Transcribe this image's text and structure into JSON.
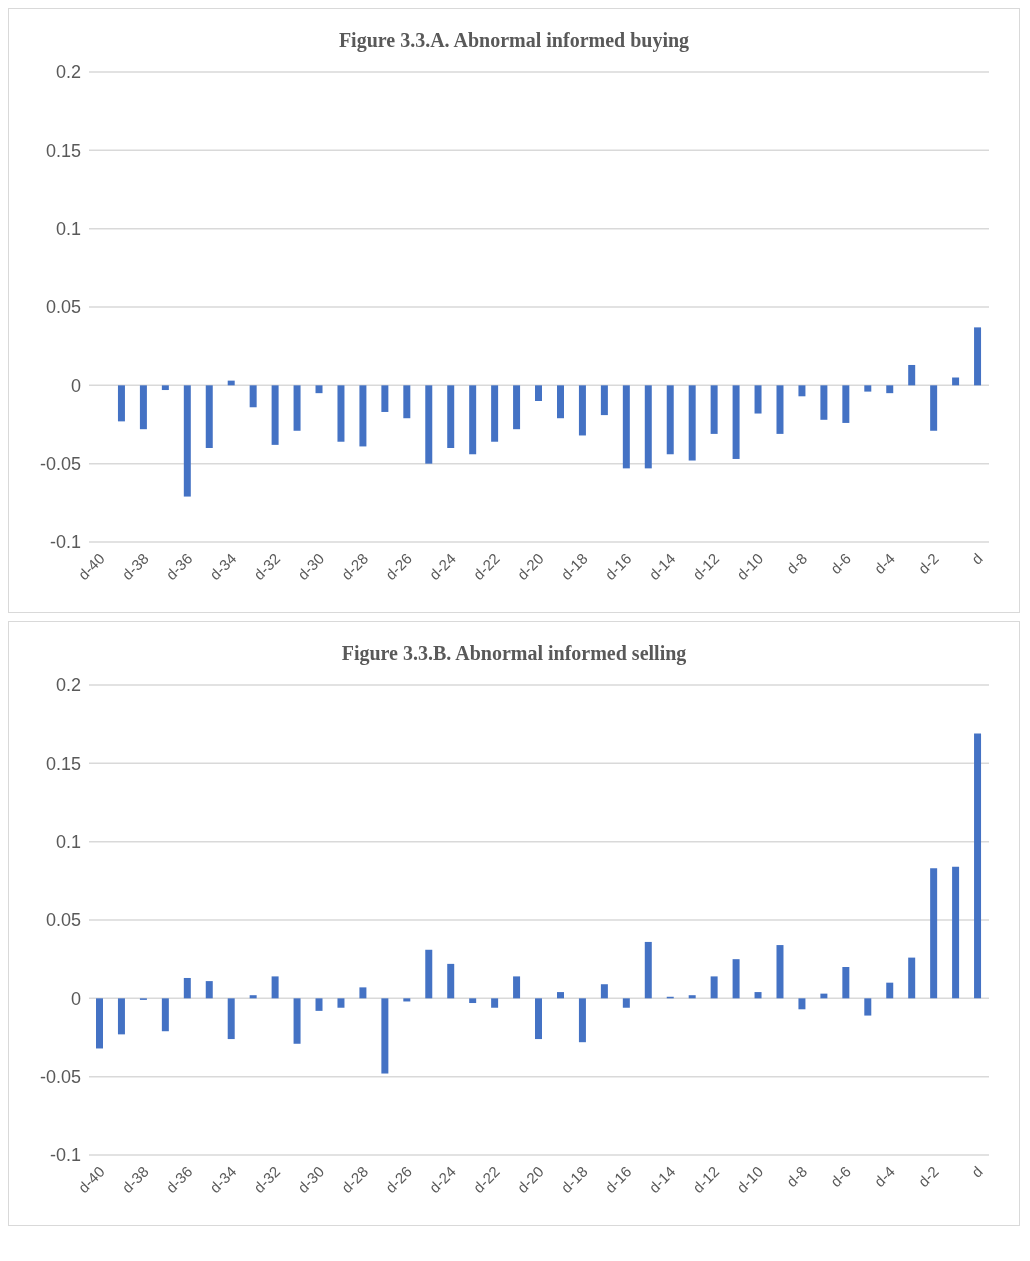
{
  "chart_data": [
    {
      "type": "bar",
      "title": "Figure 3.3.A. Abnormal informed buying",
      "categories": [
        "d-40",
        null,
        "d-38",
        null,
        "d-36",
        null,
        "d-34",
        null,
        "d-32",
        null,
        "d-30",
        null,
        "d-28",
        null,
        "d-26",
        null,
        "d-24",
        null,
        "d-22",
        null,
        "d-20",
        null,
        "d-18",
        null,
        "d-16",
        null,
        "d-14",
        null,
        "d-12",
        null,
        "d-10",
        null,
        "d-8",
        null,
        "d-6",
        null,
        "d-4",
        null,
        "d-2",
        null,
        "d"
      ],
      "values": [
        null,
        -0.023,
        -0.028,
        -0.003,
        -0.071,
        -0.04,
        0.003,
        -0.014,
        -0.038,
        -0.029,
        -0.005,
        -0.036,
        -0.039,
        -0.017,
        -0.021,
        -0.05,
        -0.04,
        -0.044,
        -0.036,
        -0.028,
        -0.01,
        -0.021,
        -0.032,
        -0.019,
        -0.053,
        -0.053,
        -0.044,
        -0.048,
        -0.031,
        -0.047,
        -0.018,
        -0.031,
        -0.007,
        -0.022,
        -0.024,
        -0.004,
        -0.005,
        0.013,
        -0.029,
        0.005,
        0.037
      ],
      "color": "#4472c4",
      "ylim": [
        -0.1,
        0.2
      ],
      "yticks": [
        -0.1,
        -0.05,
        0,
        0.05,
        0.1,
        0.15,
        0.2
      ],
      "grid": "y",
      "legend": false
    },
    {
      "type": "bar",
      "title": "Figure 3.3.B. Abnormal informed selling",
      "categories": [
        "d-40",
        null,
        "d-38",
        null,
        "d-36",
        null,
        "d-34",
        null,
        "d-32",
        null,
        "d-30",
        null,
        "d-28",
        null,
        "d-26",
        null,
        "d-24",
        null,
        "d-22",
        null,
        "d-20",
        null,
        "d-18",
        null,
        "d-16",
        null,
        "d-14",
        null,
        "d-12",
        null,
        "d-10",
        null,
        "d-8",
        null,
        "d-6",
        null,
        "d-4",
        null,
        "d-2",
        null,
        "d"
      ],
      "values": [
        -0.032,
        -0.023,
        -0.001,
        -0.021,
        0.013,
        0.011,
        -0.026,
        0.002,
        0.014,
        -0.029,
        -0.008,
        -0.006,
        0.007,
        -0.048,
        -0.002,
        0.031,
        0.022,
        -0.003,
        -0.006,
        0.014,
        -0.026,
        0.004,
        -0.028,
        0.009,
        -0.006,
        0.036,
        0.001,
        0.002,
        0.014,
        0.025,
        0.004,
        0.034,
        -0.007,
        0.003,
        0.02,
        -0.011,
        0.01,
        0.026,
        0.083,
        0.084,
        0.169
      ],
      "color": "#4472c4",
      "ylim": [
        -0.1,
        0.2
      ],
      "yticks": [
        -0.1,
        -0.05,
        0,
        0.05,
        0.1,
        0.15,
        0.2
      ],
      "grid": "y",
      "legend": false
    }
  ]
}
